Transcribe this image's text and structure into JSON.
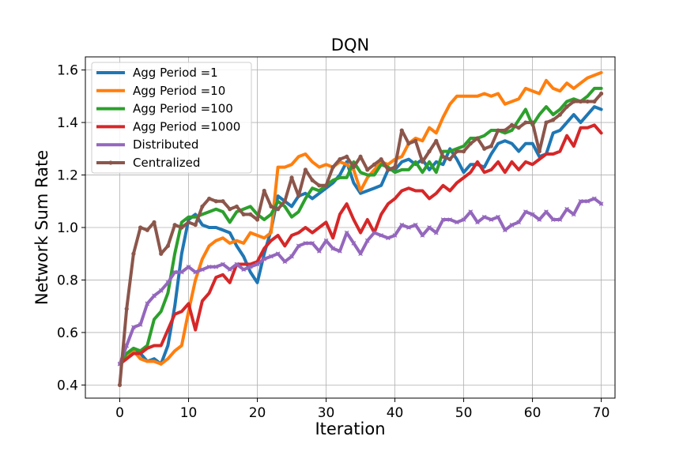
{
  "chart_data": {
    "type": "line",
    "title": "DQN",
    "xlabel": "Iteration",
    "ylabel": "Network Sum Rate",
    "xlim": [
      -5,
      72
    ],
    "ylim": [
      0.35,
      1.65
    ],
    "xticks": [
      0,
      10,
      20,
      30,
      40,
      50,
      60,
      70
    ],
    "yticks": [
      0.4,
      0.6,
      0.8,
      1.0,
      1.2,
      1.4,
      1.6
    ],
    "xtick_labels": [
      "0",
      "10",
      "20",
      "30",
      "40",
      "50",
      "60",
      "70"
    ],
    "ytick_labels": [
      "0.4",
      "0.6",
      "0.8",
      "1.0",
      "1.2",
      "1.4",
      "1.6"
    ],
    "grid": true,
    "legend_position": "upper-left",
    "series": [
      {
        "name": "Agg Period =1",
        "color": "#1f77b4",
        "marker": "none",
        "values": [
          0.48,
          0.5,
          0.53,
          0.52,
          0.49,
          0.5,
          0.48,
          0.55,
          0.7,
          0.9,
          1.03,
          1.05,
          1.01,
          1.0,
          1.0,
          0.99,
          0.98,
          0.93,
          0.89,
          0.83,
          0.79,
          0.9,
          0.99,
          1.12,
          1.1,
          1.08,
          1.12,
          1.13,
          1.11,
          1.13,
          1.15,
          1.17,
          1.2,
          1.25,
          1.17,
          1.13,
          1.14,
          1.15,
          1.16,
          1.22,
          1.22,
          1.25,
          1.26,
          1.24,
          1.26,
          1.22,
          1.25,
          1.24,
          1.3,
          1.26,
          1.21,
          1.24,
          1.24,
          1.23,
          1.28,
          1.32,
          1.33,
          1.32,
          1.29,
          1.32,
          1.32,
          1.27,
          1.28,
          1.36,
          1.37,
          1.4,
          1.43,
          1.4,
          1.43,
          1.46,
          1.45
        ]
      },
      {
        "name": "Agg Period =10",
        "color": "#ff7f0e",
        "marker": "none",
        "values": [
          0.48,
          0.5,
          0.53,
          0.5,
          0.49,
          0.49,
          0.48,
          0.5,
          0.53,
          0.55,
          0.68,
          0.8,
          0.88,
          0.93,
          0.95,
          0.96,
          0.94,
          0.95,
          0.94,
          0.98,
          0.97,
          0.96,
          0.98,
          1.23,
          1.23,
          1.24,
          1.27,
          1.28,
          1.25,
          1.23,
          1.24,
          1.23,
          1.25,
          1.24,
          1.22,
          1.14,
          1.19,
          1.22,
          1.25,
          1.24,
          1.26,
          1.27,
          1.32,
          1.34,
          1.33,
          1.38,
          1.36,
          1.42,
          1.47,
          1.5,
          1.5,
          1.5,
          1.5,
          1.51,
          1.5,
          1.51,
          1.47,
          1.48,
          1.49,
          1.53,
          1.52,
          1.51,
          1.56,
          1.53,
          1.52,
          1.55,
          1.53,
          1.55,
          1.57,
          1.58,
          1.59
        ]
      },
      {
        "name": "Agg Period =100",
        "color": "#2ca02c",
        "marker": "none",
        "values": [
          0.48,
          0.52,
          0.54,
          0.53,
          0.55,
          0.65,
          0.68,
          0.75,
          0.9,
          1.02,
          1.04,
          1.04,
          1.05,
          1.06,
          1.07,
          1.06,
          1.02,
          1.06,
          1.07,
          1.08,
          1.05,
          1.03,
          1.05,
          1.1,
          1.08,
          1.04,
          1.06,
          1.11,
          1.15,
          1.14,
          1.16,
          1.18,
          1.19,
          1.19,
          1.25,
          1.21,
          1.2,
          1.2,
          1.24,
          1.23,
          1.21,
          1.22,
          1.22,
          1.25,
          1.21,
          1.25,
          1.21,
          1.29,
          1.29,
          1.3,
          1.31,
          1.34,
          1.34,
          1.35,
          1.37,
          1.37,
          1.36,
          1.37,
          1.41,
          1.45,
          1.39,
          1.43,
          1.46,
          1.43,
          1.45,
          1.48,
          1.49,
          1.48,
          1.5,
          1.53,
          1.53
        ]
      },
      {
        "name": "Agg Period =1000",
        "color": "#d62728",
        "marker": "none",
        "values": [
          0.48,
          0.5,
          0.52,
          0.52,
          0.54,
          0.55,
          0.55,
          0.61,
          0.67,
          0.68,
          0.71,
          0.61,
          0.72,
          0.75,
          0.81,
          0.82,
          0.79,
          0.86,
          0.86,
          0.86,
          0.87,
          0.92,
          0.95,
          0.97,
          0.93,
          0.97,
          0.98,
          1.0,
          0.98,
          1.0,
          1.02,
          0.96,
          1.05,
          1.09,
          1.03,
          0.98,
          1.03,
          0.98,
          1.05,
          1.09,
          1.11,
          1.14,
          1.15,
          1.14,
          1.14,
          1.11,
          1.13,
          1.16,
          1.14,
          1.17,
          1.19,
          1.21,
          1.25,
          1.21,
          1.22,
          1.25,
          1.21,
          1.25,
          1.22,
          1.25,
          1.24,
          1.26,
          1.28,
          1.28,
          1.29,
          1.35,
          1.31,
          1.38,
          1.38,
          1.39,
          1.36
        ]
      },
      {
        "name": "Distributed",
        "color": "#9467bd",
        "marker": "x",
        "values": [
          0.48,
          0.55,
          0.62,
          0.63,
          0.71,
          0.74,
          0.76,
          0.79,
          0.83,
          0.83,
          0.85,
          0.83,
          0.84,
          0.85,
          0.85,
          0.86,
          0.84,
          0.86,
          0.84,
          0.85,
          0.86,
          0.88,
          0.89,
          0.9,
          0.87,
          0.89,
          0.93,
          0.94,
          0.94,
          0.91,
          0.95,
          0.92,
          0.91,
          0.98,
          0.94,
          0.9,
          0.95,
          0.98,
          0.97,
          0.96,
          0.97,
          1.01,
          1.0,
          1.01,
          0.97,
          1.0,
          0.98,
          1.03,
          1.03,
          1.02,
          1.03,
          1.06,
          1.02,
          1.04,
          1.03,
          1.04,
          0.99,
          1.01,
          1.02,
          1.06,
          1.05,
          1.03,
          1.06,
          1.03,
          1.03,
          1.07,
          1.05,
          1.1,
          1.1,
          1.11,
          1.09
        ]
      },
      {
        "name": "Centralized",
        "color": "#8c564b",
        "marker": "dot",
        "values": [
          0.4,
          0.69,
          0.9,
          1.0,
          0.99,
          1.02,
          0.9,
          0.93,
          1.01,
          1.0,
          1.02,
          1.01,
          1.08,
          1.11,
          1.1,
          1.1,
          1.07,
          1.08,
          1.05,
          1.05,
          1.03,
          1.14,
          1.08,
          1.07,
          1.1,
          1.19,
          1.12,
          1.22,
          1.18,
          1.16,
          1.16,
          1.23,
          1.26,
          1.27,
          1.23,
          1.27,
          1.22,
          1.24,
          1.26,
          1.22,
          1.23,
          1.37,
          1.32,
          1.33,
          1.25,
          1.29,
          1.33,
          1.27,
          1.26,
          1.29,
          1.29,
          1.32,
          1.34,
          1.3,
          1.31,
          1.37,
          1.37,
          1.39,
          1.38,
          1.4,
          1.4,
          1.29,
          1.4,
          1.41,
          1.43,
          1.46,
          1.48,
          1.48,
          1.48,
          1.48,
          1.51
        ]
      }
    ]
  }
}
